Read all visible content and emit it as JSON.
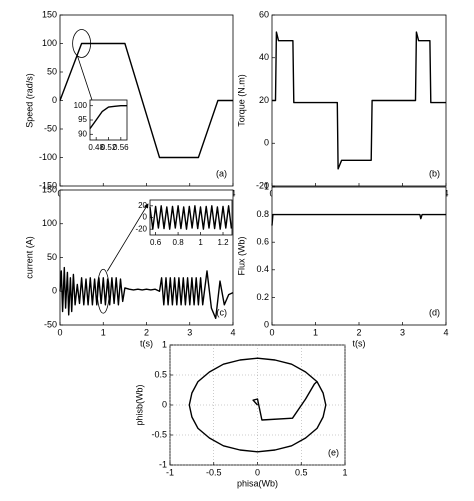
{
  "chart_data": [
    {
      "type": "line",
      "ylabel": "Speed (rad/s)",
      "annotation": "(a)",
      "color": "#000000",
      "x": [
        0,
        0.5,
        1.5,
        2.3,
        3.2,
        3.65,
        4
      ],
      "values": [
        0,
        100,
        100,
        -100,
        -100,
        0,
        0
      ],
      "xlim": [
        0,
        4
      ],
      "ylim": [
        -150,
        150
      ],
      "xticks": [
        0,
        1,
        2,
        3,
        4
      ],
      "yticks": [
        -150,
        -100,
        -50,
        0,
        50,
        100,
        150
      ],
      "inset": {
        "type": "line",
        "color": "#000000",
        "x": [
          0.46,
          0.48,
          0.5,
          0.52,
          0.54,
          0.56,
          0.58
        ],
        "values": [
          92,
          95,
          98,
          99.5,
          99.8,
          100,
          100
        ],
        "xlim": [
          0.46,
          0.58
        ],
        "ylim": [
          88,
          102
        ],
        "xticks": [
          0.48,
          0.52,
          0.56
        ],
        "yticks": [
          90,
          95,
          100
        ]
      }
    },
    {
      "type": "line",
      "ylabel": "Torque (N.m)",
      "annotation": "(b)",
      "color": "#000000",
      "x": [
        0,
        0.08,
        0.1,
        0.15,
        0.48,
        0.5,
        1.5,
        1.52,
        1.6,
        2.28,
        2.3,
        3.3,
        3.32,
        3.37,
        3.63,
        3.65,
        4
      ],
      "values": [
        20,
        20,
        52,
        48,
        48,
        19,
        19,
        -12,
        -8,
        -8,
        20,
        20,
        52,
        48,
        48,
        19,
        19
      ],
      "xlim": [
        0,
        4
      ],
      "ylim": [
        -20,
        60
      ],
      "xticks": [
        0,
        1,
        2,
        3,
        4
      ],
      "yticks": [
        -20,
        0,
        20,
        40,
        60
      ]
    },
    {
      "type": "line",
      "ylabel": "current (A)",
      "xlabel": "t(s)",
      "annotation": "(c)",
      "color": "#000000",
      "x": [
        0,
        0.03,
        0.06,
        0.1,
        0.13,
        0.17,
        0.2,
        0.24,
        0.27,
        0.31,
        0.35,
        0.4,
        0.45,
        0.5,
        0.55,
        0.6,
        0.65,
        0.7,
        0.75,
        0.8,
        0.85,
        0.9,
        0.95,
        1,
        1.05,
        1.1,
        1.15,
        1.2,
        1.25,
        1.3,
        1.35,
        1.4,
        1.45,
        1.5,
        1.6,
        1.7,
        1.8,
        1.9,
        2,
        2.1,
        2.2,
        2.3,
        2.35,
        2.4,
        2.45,
        2.5,
        2.55,
        2.6,
        2.65,
        2.7,
        2.75,
        2.8,
        2.85,
        2.9,
        2.95,
        3,
        3.05,
        3.1,
        3.15,
        3.2,
        3.25,
        3.3,
        3.4,
        3.5,
        3.6,
        3.7,
        3.8,
        3.9,
        4
      ],
      "values": [
        0,
        30,
        -30,
        35,
        -25,
        28,
        -35,
        20,
        -30,
        25,
        -20,
        10,
        -18,
        20,
        -20,
        18,
        -20,
        20,
        -20,
        18,
        -20,
        20,
        -18,
        20,
        -20,
        18,
        -20,
        20,
        -18,
        20,
        -20,
        18,
        -15,
        5,
        3,
        2,
        3,
        2,
        3,
        2,
        3,
        0,
        20,
        -20,
        20,
        -20,
        20,
        -20,
        20,
        -20,
        20,
        -20,
        20,
        -20,
        20,
        -20,
        20,
        -20,
        20,
        -20,
        20,
        -20,
        30,
        -25,
        -40,
        15,
        -20,
        -5,
        -2
      ],
      "xlim": [
        0,
        4
      ],
      "ylim": [
        -50,
        150
      ],
      "xticks": [
        0,
        1,
        2,
        3,
        4
      ],
      "yticks": [
        -50,
        0,
        50,
        100,
        150
      ],
      "inset": {
        "type": "line",
        "color": "#000000",
        "x": [
          0.55,
          0.575,
          0.6,
          0.625,
          0.65,
          0.675,
          0.7,
          0.725,
          0.75,
          0.775,
          0.8,
          0.825,
          0.85,
          0.875,
          0.9,
          0.925,
          0.95,
          0.975,
          1,
          1.025,
          1.05,
          1.075,
          1.1,
          1.125,
          1.15,
          1.175,
          1.2,
          1.225,
          1.25,
          1.275
        ],
        "values": [
          18,
          -20,
          19,
          -18,
          20,
          -19,
          18,
          -20,
          19,
          -18,
          20,
          -19,
          18,
          -20,
          19,
          -18,
          20,
          -19,
          18,
          -20,
          19,
          -18,
          20,
          -19,
          18,
          -20,
          19,
          -18,
          20,
          -19
        ],
        "xlim": [
          0.55,
          1.28
        ],
        "ylim": [
          -30,
          30
        ],
        "xticks": [
          0.6,
          0.8,
          1,
          1.2
        ],
        "yticks": [
          -20,
          0,
          20
        ]
      }
    },
    {
      "type": "line",
      "ylabel": "Flux (Wb)",
      "xlabel": "t(s)",
      "annotation": "(d)",
      "color": "#000000",
      "x": [
        0,
        0.02,
        3.4,
        3.42,
        3.45,
        4
      ],
      "values": [
        0.72,
        0.8,
        0.8,
        0.77,
        0.8,
        0.8
      ],
      "xlim": [
        0,
        4
      ],
      "ylim": [
        0,
        1
      ],
      "xticks": [
        0,
        1,
        2,
        3,
        4
      ],
      "yticks": [
        0,
        0.2,
        0.4,
        0.6,
        0.8,
        1
      ]
    },
    {
      "type": "line",
      "ylabel": "phisb(Wb)",
      "xlabel": "phisa(Wb)",
      "annotation": "(e)",
      "color": "#000000",
      "grid": true,
      "x": [
        0,
        -0.05,
        0,
        0.05,
        0.4,
        0.55,
        0.65,
        0.68,
        0.55,
        0.39,
        0.2,
        0,
        -0.2,
        -0.39,
        -0.55,
        -0.68,
        -0.75,
        -0.78,
        -0.75,
        -0.68,
        -0.55,
        -0.39,
        -0.2,
        0,
        0.2,
        0.39,
        0.55,
        0.68,
        0.75,
        0.78,
        0.75,
        0.68
      ],
      "values": [
        0,
        0.08,
        0.1,
        -0.25,
        -0.22,
        0.1,
        0.35,
        0.39,
        0.55,
        0.68,
        0.75,
        0.78,
        0.75,
        0.68,
        0.55,
        0.39,
        0.2,
        0,
        -0.2,
        -0.39,
        -0.55,
        -0.68,
        -0.75,
        -0.78,
        -0.75,
        -0.68,
        -0.55,
        -0.39,
        -0.2,
        0,
        0.2,
        0.39
      ],
      "xlim": [
        -1,
        1
      ],
      "ylim": [
        -1,
        1
      ],
      "xticks": [
        -1,
        -0.5,
        0,
        0.5,
        1
      ],
      "yticks": [
        -1,
        -0.5,
        0,
        0.5,
        1
      ]
    }
  ]
}
